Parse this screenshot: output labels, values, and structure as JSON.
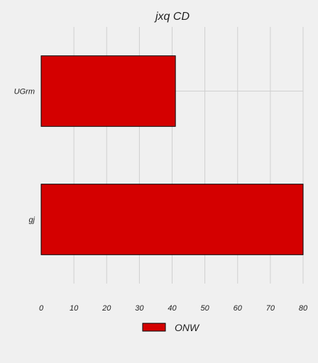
{
  "chart_data": {
    "type": "bar",
    "orientation": "horizontal",
    "title": "jxq CD",
    "xlabel": "",
    "ylabel": "",
    "categories": [
      "UGrm",
      "gj"
    ],
    "series": [
      {
        "name": "ONW",
        "values": [
          41,
          80
        ],
        "color": "#d40000"
      }
    ],
    "xlim": [
      0,
      80
    ],
    "xticks": [
      0,
      10,
      20,
      30,
      40,
      50,
      60,
      70,
      80
    ],
    "grid": true,
    "legend_position": "bottom-center",
    "colors": {
      "background": "#f0f0f0",
      "grid": "#cfcfcf",
      "bar": "#d40000",
      "bar_edge": "#000000"
    }
  }
}
